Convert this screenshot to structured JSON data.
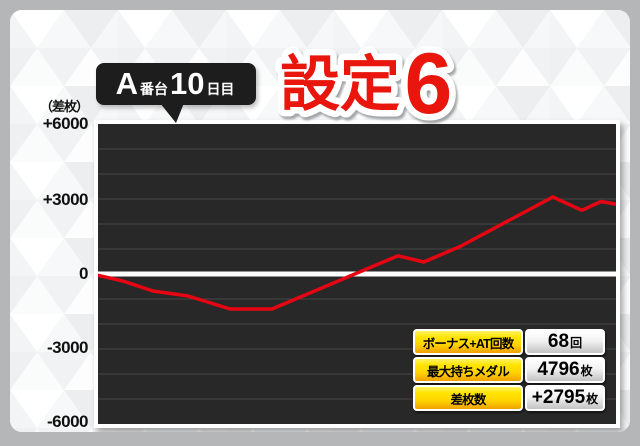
{
  "header": {
    "machine_label": {
      "machine": "A",
      "machine_suffix": "番台",
      "day": "10",
      "day_suffix": "日目"
    },
    "title": {
      "main": "設定",
      "number": "6",
      "color": "#e8150b",
      "outline": "#ffffff"
    }
  },
  "axis": {
    "unit_label": "（差枚）",
    "ticks": [
      "+6000",
      "+3000",
      "0",
      "-3000",
      "-6000"
    ]
  },
  "chart_data": {
    "type": "line",
    "ylabel": "差枚",
    "ylim": [
      -6000,
      6000
    ],
    "gridline_interval": 1000,
    "zero_line": true,
    "grid": true,
    "legend": false,
    "bg_color": "#282828",
    "grid_color": "#464646",
    "zero_line_color": "#ffffff",
    "line_color": "#e60613",
    "points": [
      [
        0.0,
        -50
      ],
      [
        0.048,
        -280
      ],
      [
        0.106,
        -680
      ],
      [
        0.174,
        -880
      ],
      [
        0.255,
        -1400
      ],
      [
        0.336,
        -1400
      ],
      [
        0.579,
        730
      ],
      [
        0.629,
        480
      ],
      [
        0.699,
        1100
      ],
      [
        0.878,
        3080
      ],
      [
        0.934,
        2550
      ],
      [
        0.971,
        2900
      ],
      [
        1.0,
        2795
      ]
    ]
  },
  "stats_table": {
    "rows": [
      {
        "label": "ボーナス+AT回数",
        "value": "68",
        "unit": "回"
      },
      {
        "label": "最大持ちメダル",
        "value": "4796",
        "unit": "枚"
      },
      {
        "label": "差枚数",
        "value": "+2795",
        "unit": "枚"
      }
    ]
  }
}
